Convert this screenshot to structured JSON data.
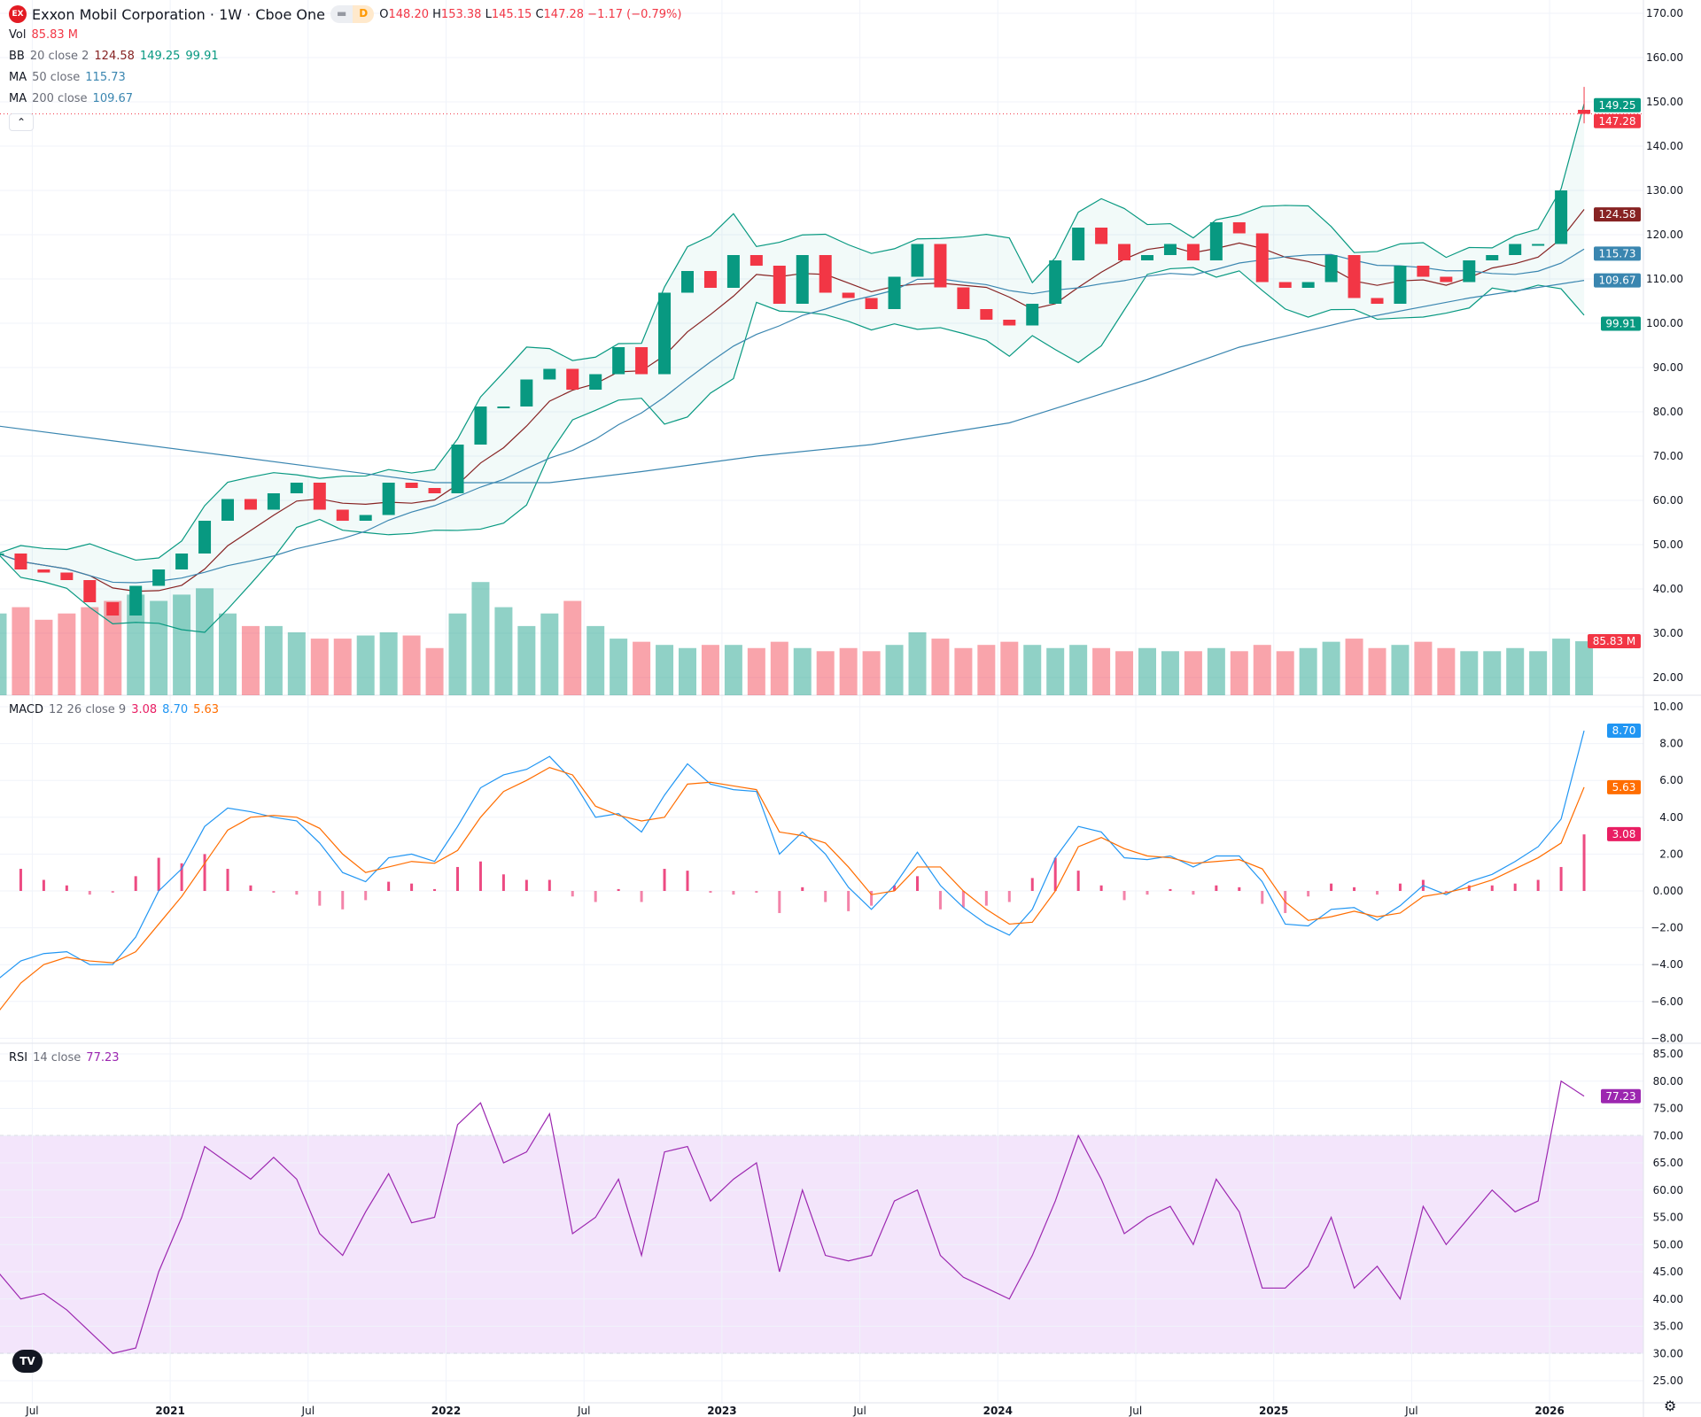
{
  "header": {
    "symbol_logo": "EX",
    "title": "Exxon Mobil Corporation · 1W · Cboe One",
    "badge": "D",
    "ohlc": [
      {
        "k": "O",
        "v": "148.20"
      },
      {
        "k": "H",
        "v": "153.38"
      },
      {
        "k": "L",
        "v": "145.15"
      },
      {
        "k": "C",
        "v": "147.28"
      }
    ],
    "change": "−1.17 (−0.79%)"
  },
  "legends": {
    "vol": {
      "name": "Vol",
      "value": "85.83 M"
    },
    "bb": {
      "name": "BB",
      "params": "20 close 2",
      "basis": "124.58",
      "upper": "149.25",
      "lower": "99.91"
    },
    "ma50": {
      "name": "MA",
      "params": "50 close",
      "value": "115.73"
    },
    "ma200": {
      "name": "MA",
      "params": "200 close",
      "value": "109.67"
    },
    "macd": {
      "name": "MACD",
      "params": "12 26 close 9",
      "hist": "3.08",
      "macd": "8.70",
      "signal": "5.63"
    },
    "rsi": {
      "name": "RSI",
      "params": "14 close",
      "value": "77.23"
    }
  },
  "colors": {
    "up": "#089981",
    "down": "#f23645",
    "bb": "#089981",
    "bb_basis": "#872323",
    "ma50": "#3a86b0",
    "ma200": "#3a86b0",
    "macd": "#2196f3",
    "signal": "#ff6d00",
    "hist": "#e91e63",
    "rsi": "#9c27b0",
    "rsi_band": "#f3e5fb"
  },
  "chart_data": [
    {
      "type": "candlestick",
      "title": "Exxon Mobil Corporation · 1W · Cboe One",
      "ylim": [
        15,
        172
      ],
      "grid": true,
      "price_ticks": [
        "170.00",
        "160.00",
        "150.00",
        "140.00",
        "130.00",
        "120.00",
        "110.00",
        "100.00",
        "90.00",
        "80.00",
        "70.00",
        "60.00",
        "50.00",
        "40.00",
        "30.00",
        "20.00"
      ],
      "time_labels": [
        {
          "date": "2020-07",
          "label": "Jul"
        },
        {
          "date": "2021-01",
          "label": "2021"
        },
        {
          "date": "2021-07",
          "label": "Jul"
        },
        {
          "date": "2022-01",
          "label": "2022"
        },
        {
          "date": "2022-07",
          "label": "Jul"
        },
        {
          "date": "2023-01",
          "label": "2023"
        },
        {
          "date": "2023-07",
          "label": "Jul"
        },
        {
          "date": "2024-01",
          "label": "2024"
        },
        {
          "date": "2024-07",
          "label": "Jul"
        },
        {
          "date": "2025-01",
          "label": "2025"
        },
        {
          "date": "2025-07",
          "label": "Jul"
        },
        {
          "date": "2026-01",
          "label": "2026"
        }
      ],
      "dates": [
        "2020-05",
        "2020-06",
        "2020-07",
        "2020-08",
        "2020-09",
        "2020-10",
        "2020-11",
        "2020-12",
        "2021-01",
        "2021-02",
        "2021-03",
        "2021-04",
        "2021-05",
        "2021-06",
        "2021-07",
        "2021-08",
        "2021-09",
        "2021-10",
        "2021-11",
        "2021-12",
        "2022-01",
        "2022-02",
        "2022-03",
        "2022-04",
        "2022-05",
        "2022-06",
        "2022-07",
        "2022-08",
        "2022-09",
        "2022-10",
        "2022-11",
        "2022-12",
        "2023-01",
        "2023-02",
        "2023-03",
        "2023-04",
        "2023-05",
        "2023-06",
        "2023-07",
        "2023-08",
        "2023-09",
        "2023-10",
        "2023-11",
        "2023-12",
        "2024-01",
        "2024-02",
        "2024-03",
        "2024-04",
        "2024-05",
        "2024-06",
        "2024-07",
        "2024-08",
        "2024-09",
        "2024-10",
        "2024-11",
        "2024-12",
        "2025-01",
        "2025-02",
        "2025-03",
        "2025-04",
        "2025-05",
        "2025-06",
        "2025-07",
        "2025-08",
        "2025-09",
        "2025-10",
        "2025-11",
        "2025-12",
        "2026-01",
        "2026-02"
      ],
      "close": [
        48,
        44.4,
        43.7,
        42,
        37,
        34,
        40.7,
        44.4,
        48,
        55.4,
        60.3,
        57.9,
        61.6,
        64,
        57.9,
        55.4,
        56.7,
        64,
        62.8,
        61.6,
        72.6,
        81.2,
        81.2,
        87.3,
        89.7,
        85,
        88.5,
        94.6,
        88.5,
        106.9,
        111.8,
        108,
        115.4,
        113,
        104.4,
        115.4,
        106.9,
        105.7,
        103.2,
        110.5,
        117.9,
        108.1,
        103.2,
        100.8,
        99.5,
        104.4,
        114.2,
        121.6,
        117.9,
        114.2,
        115.4,
        117.9,
        114.2,
        122.8,
        120.3,
        109.3,
        108,
        109.3,
        115.4,
        105.7,
        104.4,
        113,
        110.5,
        109.3,
        114.2,
        115.4,
        117.9,
        117.9,
        130,
        147.28
      ],
      "last_bar": {
        "open": 148.2,
        "high": 153.38,
        "low": 145.15,
        "close": 147.28
      },
      "volume_millions": [
        130,
        140,
        120,
        130,
        140,
        150,
        160,
        150,
        160,
        170,
        130,
        110,
        110,
        100,
        90,
        90,
        95,
        100,
        95,
        75,
        130,
        180,
        140,
        110,
        130,
        150,
        110,
        90,
        85,
        80,
        75,
        80,
        80,
        75,
        85,
        75,
        70,
        75,
        70,
        80,
        100,
        90,
        75,
        80,
        85,
        80,
        75,
        80,
        75,
        70,
        75,
        70,
        70,
        75,
        70,
        80,
        70,
        75,
        85,
        90,
        75,
        80,
        85,
        75,
        70,
        70,
        75,
        70,
        90,
        85.83
      ],
      "ma200": [
        {
          "date": "2020-05",
          "value": 76.8
        },
        {
          "date": "2021-03",
          "value": 70.1
        },
        {
          "date": "2021-12",
          "value": 64
        },
        {
          "date": "2022-05",
          "value": 64
        },
        {
          "date": "2022-09",
          "value": 66.5
        },
        {
          "date": "2023-02",
          "value": 70
        },
        {
          "date": "2023-07",
          "value": 72.6
        },
        {
          "date": "2024-01",
          "value": 77.5
        },
        {
          "date": "2024-07",
          "value": 87.3
        },
        {
          "date": "2024-11",
          "value": 94.6
        },
        {
          "date": "2025-04",
          "value": 100.8
        },
        {
          "date": "2025-09",
          "value": 105.7
        },
        {
          "date": "2026-02",
          "value": 109.67
        }
      ]
    },
    {
      "type": "line",
      "title": "MACD 12 26 close 9",
      "ylim": [
        -8,
        10
      ],
      "ticks": [
        "10.00",
        "8.00",
        "6.00",
        "4.00",
        "2.00",
        "0.000",
        "−2.00",
        "−4.00",
        "−6.00",
        "−8.00"
      ],
      "macd": [
        -4.8,
        -3.8,
        -3.4,
        -3.3,
        -4,
        -4,
        -2.5,
        0,
        1.2,
        3.5,
        4.5,
        4.3,
        4,
        3.8,
        2.6,
        1,
        0.5,
        1.8,
        2,
        1.6,
        3.5,
        5.6,
        6.3,
        6.6,
        7.3,
        6,
        4,
        4.2,
        3.2,
        5.2,
        6.9,
        5.8,
        5.5,
        5.4,
        2,
        3.2,
        2,
        0.2,
        -1,
        0.3,
        2.1,
        0.3,
        -0.9,
        -1.8,
        -2.4,
        -1,
        1.8,
        3.5,
        3.2,
        1.8,
        1.7,
        1.9,
        1.3,
        1.9,
        1.9,
        0.5,
        -1.8,
        -1.9,
        -1,
        -0.9,
        -1.6,
        -0.8,
        0.3,
        -0.2,
        0.5,
        0.9,
        1.6,
        2.4,
        3.9,
        8.7
      ],
      "signal": [
        -6.6,
        -5,
        -4,
        -3.6,
        -3.8,
        -3.9,
        -3.3,
        -1.8,
        -0.3,
        1.5,
        3.3,
        4,
        4.1,
        4,
        3.4,
        2,
        1,
        1.3,
        1.6,
        1.5,
        2.2,
        4,
        5.4,
        6,
        6.7,
        6.3,
        4.6,
        4.1,
        3.8,
        4,
        5.8,
        5.9,
        5.7,
        5.5,
        3.2,
        3,
        2.6,
        1.3,
        -0.2,
        0,
        1.3,
        1.3,
        0,
        -1,
        -1.8,
        -1.7,
        0,
        2.4,
        2.9,
        2.3,
        1.9,
        1.8,
        1.5,
        1.6,
        1.7,
        1.2,
        -0.6,
        -1.6,
        -1.4,
        -1.1,
        -1.4,
        -1.2,
        -0.3,
        -0.1,
        0.2,
        0.6,
        1.2,
        1.8,
        2.6,
        5.63
      ]
    },
    {
      "type": "line",
      "title": "RSI 14 close",
      "ylim": [
        25,
        85
      ],
      "band": [
        30,
        70
      ],
      "ticks": [
        "85.00",
        "80.00",
        "75.00",
        "70.00",
        "65.00",
        "60.00",
        "55.00",
        "50.00",
        "45.00",
        "40.00",
        "35.00",
        "30.00",
        "25.00"
      ],
      "rsi": [
        45,
        40,
        41,
        38,
        34,
        30,
        31,
        45,
        55,
        68,
        65,
        62,
        66,
        62,
        52,
        48,
        56,
        63,
        54,
        55,
        72,
        76,
        65,
        67,
        74,
        52,
        55,
        62,
        48,
        67,
        68,
        58,
        62,
        65,
        45,
        60,
        48,
        47,
        48,
        58,
        60,
        48,
        44,
        42,
        40,
        48,
        58,
        70,
        62,
        52,
        55,
        57,
        50,
        62,
        56,
        42,
        42,
        46,
        55,
        42,
        46,
        40,
        57,
        50,
        55,
        60,
        56,
        58,
        80,
        77.23
      ]
    }
  ]
}
